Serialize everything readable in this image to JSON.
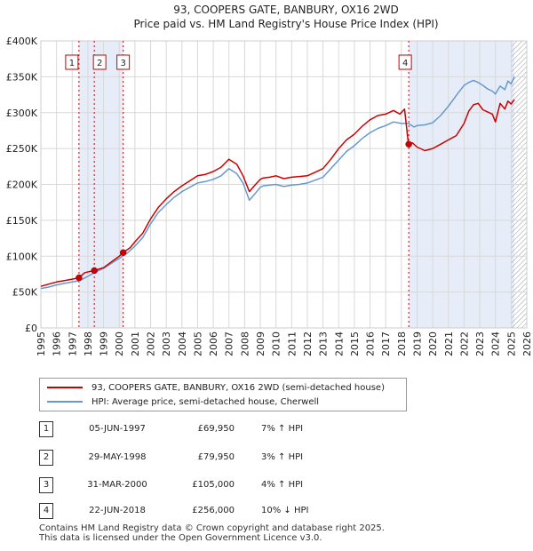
{
  "chart_data": {
    "type": "line",
    "title": "93, COOPERS GATE, BANBURY, OX16 2WD",
    "subtitle": "Price paid vs. HM Land Registry's House Price Index (HPI)",
    "xlabel": "",
    "ylabel": "",
    "xlim": [
      1995,
      2026
    ],
    "ylim": [
      0,
      400000
    ],
    "grid": true,
    "x_ticks": [
      "1995",
      "1996",
      "1997",
      "1998",
      "1999",
      "2000",
      "2001",
      "2002",
      "2003",
      "2004",
      "2005",
      "2006",
      "2007",
      "2008",
      "2009",
      "2010",
      "2011",
      "2012",
      "2013",
      "2014",
      "2015",
      "2016",
      "2017",
      "2018",
      "2019",
      "2020",
      "2021",
      "2022",
      "2023",
      "2024",
      "2025",
      "2026"
    ],
    "y_ticks": [
      {
        "value": 0,
        "label": "£0"
      },
      {
        "value": 50000,
        "label": "£50K"
      },
      {
        "value": 100000,
        "label": "£100K"
      },
      {
        "value": 150000,
        "label": "£150K"
      },
      {
        "value": 200000,
        "label": "£200K"
      },
      {
        "value": 250000,
        "label": "£250K"
      },
      {
        "value": 300000,
        "label": "£300K"
      },
      {
        "value": 350000,
        "label": "£350K"
      },
      {
        "value": 400000,
        "label": "£400K"
      }
    ],
    "series": [
      {
        "name": "93, COOPERS GATE, BANBURY, OX16 2WD (semi-detached house)",
        "color": "#cc0000",
        "x": [
          1995,
          1995.5,
          1996,
          1996.5,
          1997,
          1997.43,
          1997.8,
          1998.41,
          1999,
          1999.5,
          2000,
          2000.25,
          2000.7,
          2001,
          2001.5,
          2002,
          2002.5,
          2003,
          2003.5,
          2004,
          2004.5,
          2005,
          2005.5,
          2006,
          2006.5,
          2007,
          2007.5,
          2007.9,
          2008.3,
          2008.7,
          2009,
          2009.2,
          2009.6,
          2010,
          2010.5,
          2011,
          2011.5,
          2012,
          2012.5,
          2013,
          2013.5,
          2014,
          2014.5,
          2015,
          2015.5,
          2016,
          2016.5,
          2017,
          2017.5,
          2017.9,
          2018.2,
          2018.45,
          2018.47,
          2018.7,
          2019,
          2019.5,
          2020,
          2020.5,
          2021,
          2021.5,
          2022,
          2022.3,
          2022.6,
          2022.9,
          2023.2,
          2023.5,
          2023.8,
          2024,
          2024.3,
          2024.6,
          2024.8,
          2025,
          2025.2
        ],
        "values": [
          58000,
          61000,
          64000,
          66000,
          68000,
          69950,
          77000,
          79950,
          84000,
          92000,
          100000,
          105000,
          112000,
          120000,
          132000,
          152000,
          168000,
          180000,
          190000,
          198000,
          205000,
          212000,
          214000,
          218000,
          224000,
          235000,
          228000,
          212000,
          190000,
          200000,
          207000,
          209000,
          210000,
          212000,
          208000,
          210000,
          211000,
          212000,
          217000,
          222000,
          235000,
          250000,
          262000,
          270000,
          281000,
          290000,
          296000,
          298000,
          303000,
          298000,
          305000,
          256000,
          256000,
          258000,
          252000,
          247000,
          250000,
          256000,
          262000,
          268000,
          285000,
          302000,
          311000,
          313000,
          304000,
          301000,
          298000,
          287000,
          313000,
          305000,
          316000,
          312000,
          318000
        ]
      },
      {
        "name": "HPI: Average price, semi-detached house, Cherwell",
        "color": "#6699cc",
        "x": [
          1995,
          1995.5,
          1996,
          1996.5,
          1997,
          1997.5,
          1998,
          1998.5,
          1999,
          1999.5,
          2000,
          2000.5,
          2001,
          2001.5,
          2002,
          2002.5,
          2003,
          2003.5,
          2004,
          2004.5,
          2005,
          2005.5,
          2006,
          2006.5,
          2007,
          2007.5,
          2007.9,
          2008.3,
          2008.7,
          2009,
          2009.2,
          2009.6,
          2010,
          2010.5,
          2011,
          2011.5,
          2012,
          2012.5,
          2013,
          2013.5,
          2014,
          2014.5,
          2015,
          2015.5,
          2016,
          2016.5,
          2017,
          2017.5,
          2018,
          2018.45,
          2018.8,
          2019,
          2019.5,
          2020,
          2020.5,
          2021,
          2021.5,
          2022,
          2022.3,
          2022.6,
          2022.9,
          2023.2,
          2023.5,
          2023.8,
          2024,
          2024.3,
          2024.6,
          2024.8,
          2025,
          2025.2
        ],
        "values": [
          55000,
          57000,
          60000,
          62000,
          64000,
          66000,
          72000,
          78000,
          83000,
          90000,
          97000,
          104000,
          114000,
          126000,
          145000,
          161000,
          172000,
          182000,
          190000,
          196000,
          202000,
          204000,
          207000,
          212000,
          222000,
          215000,
          202000,
          178000,
          188000,
          196000,
          198000,
          199000,
          200000,
          197000,
          199000,
          200000,
          202000,
          206000,
          210000,
          222000,
          234000,
          246000,
          254000,
          264000,
          272000,
          278000,
          282000,
          287000,
          285000,
          285000,
          280000,
          282000,
          283000,
          286000,
          296000,
          309000,
          324000,
          338000,
          342000,
          345000,
          342000,
          338000,
          333000,
          330000,
          326000,
          337000,
          332000,
          344000,
          340000,
          350000
        ]
      }
    ],
    "transactions": [
      {
        "id": "1",
        "x": 1997.43,
        "price": 69950
      },
      {
        "id": "2",
        "x": 1998.41,
        "price": 79950
      },
      {
        "id": "3",
        "x": 2000.25,
        "price": 105000
      },
      {
        "id": "4",
        "x": 2018.47,
        "price": 256000
      }
    ],
    "shaded_ranges": [
      [
        1997.43,
        2000.25
      ],
      [
        2018.47,
        2025.2
      ]
    ],
    "hatch_from": 2025.0
  },
  "legend": {
    "red_label": "93, COOPERS GATE, BANBURY, OX16 2WD (semi-detached house)",
    "blue_label": "HPI: Average price, semi-detached house, Cherwell",
    "red_color": "#cc0000",
    "blue_color": "#6699cc"
  },
  "table": [
    {
      "id": "1",
      "date": "05-JUN-1997",
      "price": "£69,950",
      "hpi": "7% ↑ HPI"
    },
    {
      "id": "2",
      "date": "29-MAY-1998",
      "price": "£79,950",
      "hpi": "3% ↑ HPI"
    },
    {
      "id": "3",
      "date": "31-MAR-2000",
      "price": "£105,000",
      "hpi": "4% ↑ HPI"
    },
    {
      "id": "4",
      "date": "22-JUN-2018",
      "price": "£256,000",
      "hpi": "10% ↓ HPI"
    }
  ],
  "footer": {
    "line1": "Contains HM Land Registry data © Crown copyright and database right 2025.",
    "line2": "This data is licensed under the Open Government Licence v3.0."
  }
}
